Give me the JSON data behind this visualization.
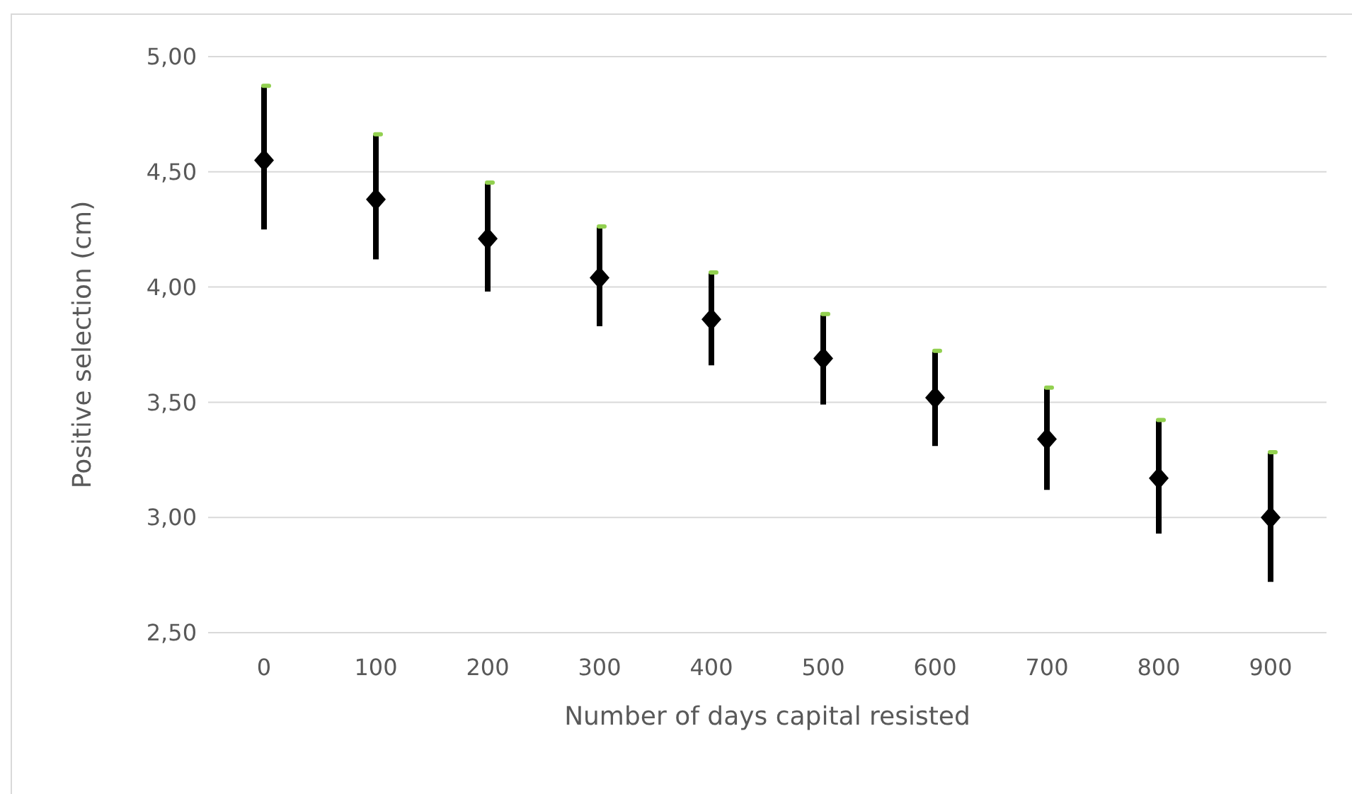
{
  "chart_data": {
    "type": "scatter",
    "xlabel": "Number of days capital resisted",
    "ylabel": "Positive selection (cm)",
    "categories": [
      "0",
      "100",
      "200",
      "300",
      "400",
      "500",
      "600",
      "700",
      "800",
      "900"
    ],
    "series": [
      {
        "color": "#000000",
        "marker": "diamond",
        "values": [
          4.55,
          4.38,
          4.21,
          4.04,
          3.86,
          3.69,
          3.52,
          3.34,
          3.17,
          3.0
        ],
        "errors": [
          [
            4.25,
            4.87
          ],
          [
            4.12,
            4.66
          ],
          [
            3.98,
            4.45
          ],
          [
            3.83,
            4.26
          ],
          [
            3.66,
            4.06
          ],
          [
            3.49,
            3.88
          ],
          [
            3.31,
            3.72
          ],
          [
            3.12,
            3.56
          ],
          [
            2.93,
            3.42
          ],
          [
            2.72,
            3.28
          ]
        ]
      },
      {
        "color": "#92d050",
        "marker": "square",
        "values": [
          4.87,
          4.66,
          4.45,
          4.26,
          4.06,
          3.88,
          3.72,
          3.56,
          3.42,
          3.28
        ]
      }
    ],
    "ylim": [
      2.5,
      5.0
    ],
    "yticks": [
      {
        "value": 2.5,
        "label": "2,50"
      },
      {
        "value": 3.0,
        "label": "3,00"
      },
      {
        "value": 3.5,
        "label": "3,50"
      },
      {
        "value": 4.0,
        "label": "4,00"
      },
      {
        "value": 4.5,
        "label": "4,50"
      },
      {
        "value": 5.0,
        "label": "5,00"
      }
    ],
    "grid": "y"
  }
}
